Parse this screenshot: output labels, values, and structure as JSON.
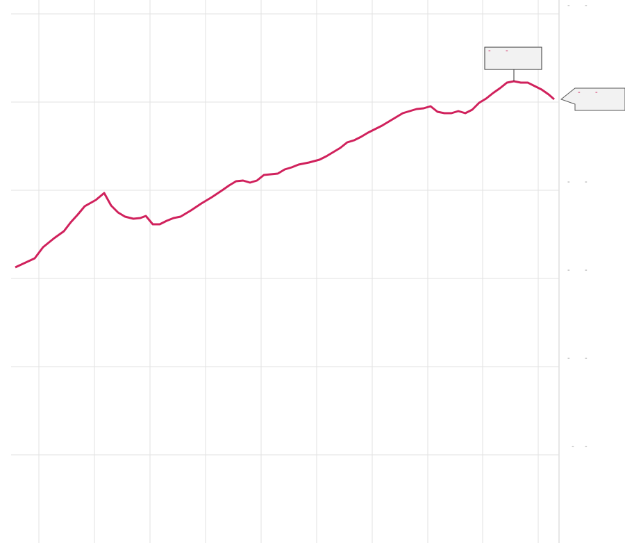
{
  "chart_data": {
    "type": "line",
    "x": [
      22,
      50,
      62,
      78,
      92,
      102,
      112,
      122,
      138,
      150,
      160,
      170,
      180,
      192,
      202,
      210,
      220,
      230,
      240,
      250,
      260,
      275,
      290,
      305,
      320,
      330,
      340,
      350,
      360,
      370,
      380,
      390,
      400,
      410,
      420,
      430,
      445,
      460,
      470,
      480,
      490,
      500,
      510,
      520,
      530,
      540,
      550,
      560,
      570,
      580,
      590,
      600,
      610,
      620,
      630,
      640,
      650,
      660,
      670,
      680,
      690,
      700,
      710,
      720,
      730,
      740,
      750,
      760,
      770,
      780,
      790,
      798
    ],
    "series": [
      {
        "color": "#d0215c",
        "values": [
          397,
          410,
          426,
          439,
          449,
          462,
          473,
          485,
          494,
          504,
          486,
          476,
          470,
          467,
          468,
          471,
          459,
          459,
          464,
          468,
          470,
          479,
          489,
          498,
          508,
          515,
          521,
          522,
          519,
          522,
          530,
          531,
          532,
          538,
          541,
          545,
          548,
          552,
          557,
          563,
          569,
          577,
          580,
          585,
          591,
          596,
          601,
          607,
          613,
          619,
          622,
          625,
          626,
          629,
          621,
          619,
          619,
          622,
          619,
          624,
          634,
          640,
          648,
          655,
          663,
          665,
          663,
          663,
          658,
          653,
          646,
          639
        ]
      }
    ],
    "xlim": [
      0,
      805
    ],
    "xticks": [
      56,
      136,
      216,
      296,
      376,
      456,
      536,
      616,
      695,
      775
    ],
    "ylim": [
      0,
      782
    ],
    "yticks": [
      {
        "value": 762,
        "label": "-       -"
      },
      {
        "value": 635,
        "label": "-       -"
      },
      {
        "value": 508,
        "label": "-       -"
      },
      {
        "value": 381,
        "label": "-       -"
      },
      {
        "value": 254,
        "label": "-       -"
      },
      {
        "value": 127,
        "label": "  -     -"
      }
    ],
    "grid": true,
    "annotations": [
      {
        "text": "-       -"
      },
      {
        "text": "-       -"
      }
    ]
  }
}
